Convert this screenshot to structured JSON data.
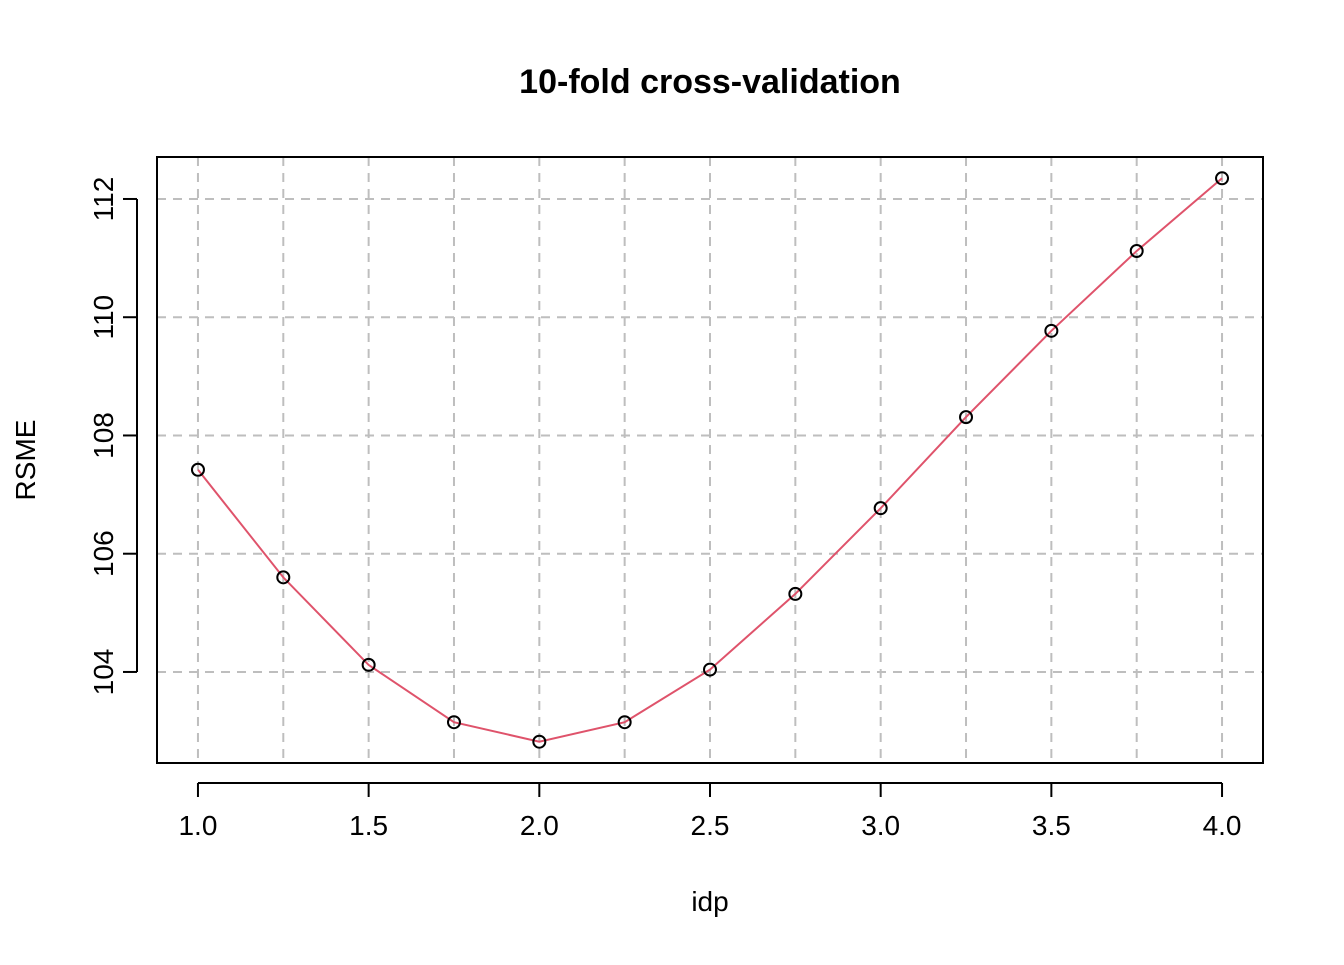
{
  "chart_data": {
    "type": "line",
    "title": "10-fold cross-validation",
    "xlabel": "idp",
    "ylabel": "RSME",
    "x": [
      1.0,
      1.25,
      1.5,
      1.75,
      2.0,
      2.25,
      2.5,
      2.75,
      3.0,
      3.25,
      3.5,
      3.75,
      4.0
    ],
    "series": [
      {
        "values": [
          107.42,
          105.6,
          104.12,
          103.15,
          102.82,
          103.15,
          104.04,
          105.32,
          106.77,
          108.31,
          109.77,
          111.12,
          112.35
        ],
        "line_color": "#DF536B",
        "marker_color": "#000000",
        "marker": "open-circle"
      }
    ],
    "xlim": [
      0.88,
      4.12
    ],
    "ylim": [
      102.46,
      112.71
    ],
    "xticks": [
      1.0,
      1.5,
      2.0,
      2.5,
      3.0,
      3.5,
      4.0
    ],
    "xtick_labels": [
      "1.0",
      "1.5",
      "2.0",
      "2.5",
      "3.0",
      "3.5",
      "4.0"
    ],
    "yticks": [
      104,
      106,
      108,
      110,
      112
    ],
    "ytick_labels": [
      "104",
      "106",
      "108",
      "110",
      "112"
    ],
    "grid": true,
    "grid_x": [
      1.0,
      1.25,
      1.5,
      1.75,
      2.0,
      2.25,
      2.5,
      2.75,
      3.0,
      3.25,
      3.5,
      3.75,
      4.0
    ],
    "grid_y": [
      104,
      106,
      108,
      110,
      112
    ],
    "grid_color": "#BEBEBE",
    "grid_style": "dashed",
    "legend": "none"
  }
}
